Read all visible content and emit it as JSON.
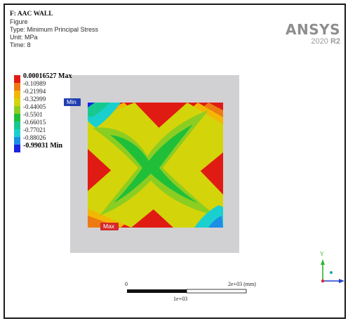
{
  "info": {
    "title": "F: AAC WALL",
    "kind": "Figure",
    "type": "Type: Minimum Principal Stress",
    "unit": "Unit: MPa",
    "time": "Time: 8"
  },
  "brand": {
    "name": "ANSYS",
    "version": "2020",
    "release": "R2"
  },
  "legend": {
    "max_label": "0.00016527 Max",
    "min_label": "-0.99031 Min",
    "values": [
      "-0.10989",
      "-0.21994",
      "-0.32999",
      "-0.44005",
      "-0.5501",
      "-0.66015",
      "-0.77021",
      "-0.88026"
    ],
    "colors": [
      "#e01b14",
      "#ee7a12",
      "#f2b705",
      "#d4d40a",
      "#8ccd22",
      "#1fbf3a",
      "#18c98f",
      "#1ad0cf",
      "#1b8ee6",
      "#1a23e0"
    ]
  },
  "probes": {
    "min_label": "Min",
    "max_label": "Max"
  },
  "scale": {
    "zero": "0",
    "end": "2e+03 (mm)",
    "mid": "1e+03"
  },
  "triad": {
    "y_label": "Y"
  },
  "colors": {
    "background": "#ffffff",
    "wall_outline": "#c9c9cd"
  }
}
